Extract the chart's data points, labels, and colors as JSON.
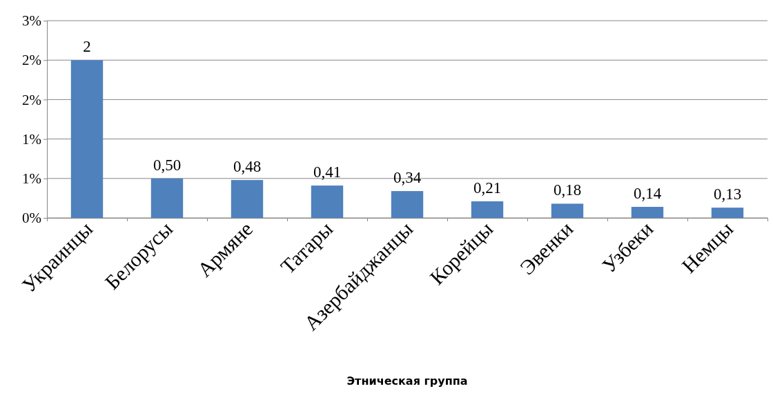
{
  "chart_data": {
    "type": "bar",
    "xlabel": "Этническая группа",
    "categories": [
      "Украинцы",
      "Белорусы",
      "Армяне",
      "Татары",
      "Азербайджанцы",
      "Корейцы",
      "Эвенки",
      "Узбеки",
      "Немцы"
    ],
    "values": [
      2,
      0.5,
      0.48,
      0.41,
      0.34,
      0.21,
      0.18,
      0.14,
      0.13
    ],
    "value_labels": [
      "2",
      "0,50",
      "0,48",
      "0,41",
      "0,34",
      "0,21",
      "0,18",
      "0,14",
      "0,13"
    ],
    "color": "#4f81bd",
    "ylim": [
      0,
      2.5
    ],
    "yticks": [
      {
        "value": 0,
        "label": "0%"
      },
      {
        "value": 0.5,
        "label": "1%"
      },
      {
        "value": 1,
        "label": "1%"
      },
      {
        "value": 1.5,
        "label": "2%"
      },
      {
        "value": 2,
        "label": "2%"
      },
      {
        "value": 2.5,
        "label": "3%"
      }
    ],
    "grid": "y"
  }
}
